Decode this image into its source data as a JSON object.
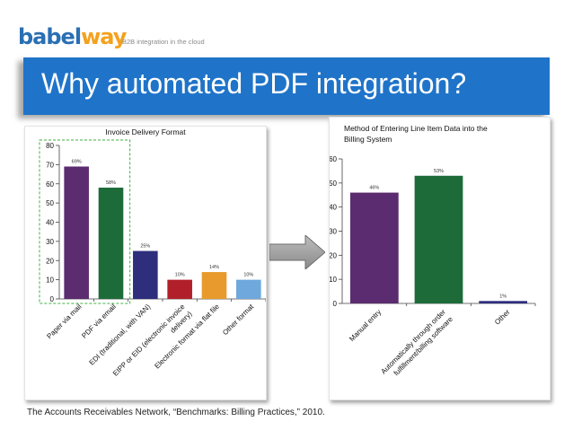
{
  "header": {
    "logo_part1": "babel",
    "logo_part2": "way",
    "tagline": "B2B integration in the cloud"
  },
  "banner": {
    "title": "Why automated PDF integration?"
  },
  "source": "The Accounts Receivables Network, “Benchmarks: Billing Practices,” 2010.",
  "colors": {
    "banner": "#1f74c9",
    "arrow": "#9a9a9a",
    "highlight": "#3cb043"
  },
  "chart_data": [
    {
      "type": "bar",
      "title": "Invoice Delivery Format",
      "categories": [
        "Paper via mail",
        "PDF via email",
        "EDI (traditional, with VAN)",
        "EIPP or EID (electronic invoice delivery)",
        "Electronic format via flat file",
        "Other format"
      ],
      "category_lines": [
        [
          "Paper via mail"
        ],
        [
          "PDF via email"
        ],
        [
          "EDI (traditional, with VAN)"
        ],
        [
          "EIPP or EID (electronic invoice",
          "delivery)"
        ],
        [
          "Electronic format via flat file"
        ],
        [
          "Other format"
        ]
      ],
      "values": [
        69,
        58,
        25,
        10,
        14,
        10
      ],
      "data_labels": [
        "69%",
        "58%",
        "25%",
        "10%",
        "14%",
        "10%"
      ],
      "colors": [
        "#5b2c6f",
        "#1e6b3a",
        "#2e2e7d",
        "#b1202a",
        "#e89a2c",
        "#6fa8dc"
      ],
      "ylim": [
        0,
        80
      ],
      "yticks": [
        0,
        10,
        20,
        30,
        40,
        50,
        60,
        70,
        80
      ],
      "highlight_first": 2
    },
    {
      "type": "bar",
      "title": "Method of Entering Line Item Data into the Billing System",
      "title_lines": [
        "Method of Entering Line Item Data into the",
        "Billing System"
      ],
      "categories": [
        "Manual entry",
        "Automatically through order fulfillment/billing software",
        "Other"
      ],
      "category_lines": [
        [
          "Manual entry"
        ],
        [
          "Automatically through order",
          "fulfillment/billing software"
        ],
        [
          "Other"
        ]
      ],
      "values": [
        46,
        53,
        1
      ],
      "data_labels": [
        "46%",
        "53%",
        "1%"
      ],
      "colors": [
        "#5b2c6f",
        "#1e6b3a",
        "#2e2e7d"
      ],
      "ylim": [
        0,
        60
      ],
      "yticks": [
        0,
        10,
        20,
        30,
        40,
        50,
        60
      ]
    }
  ]
}
